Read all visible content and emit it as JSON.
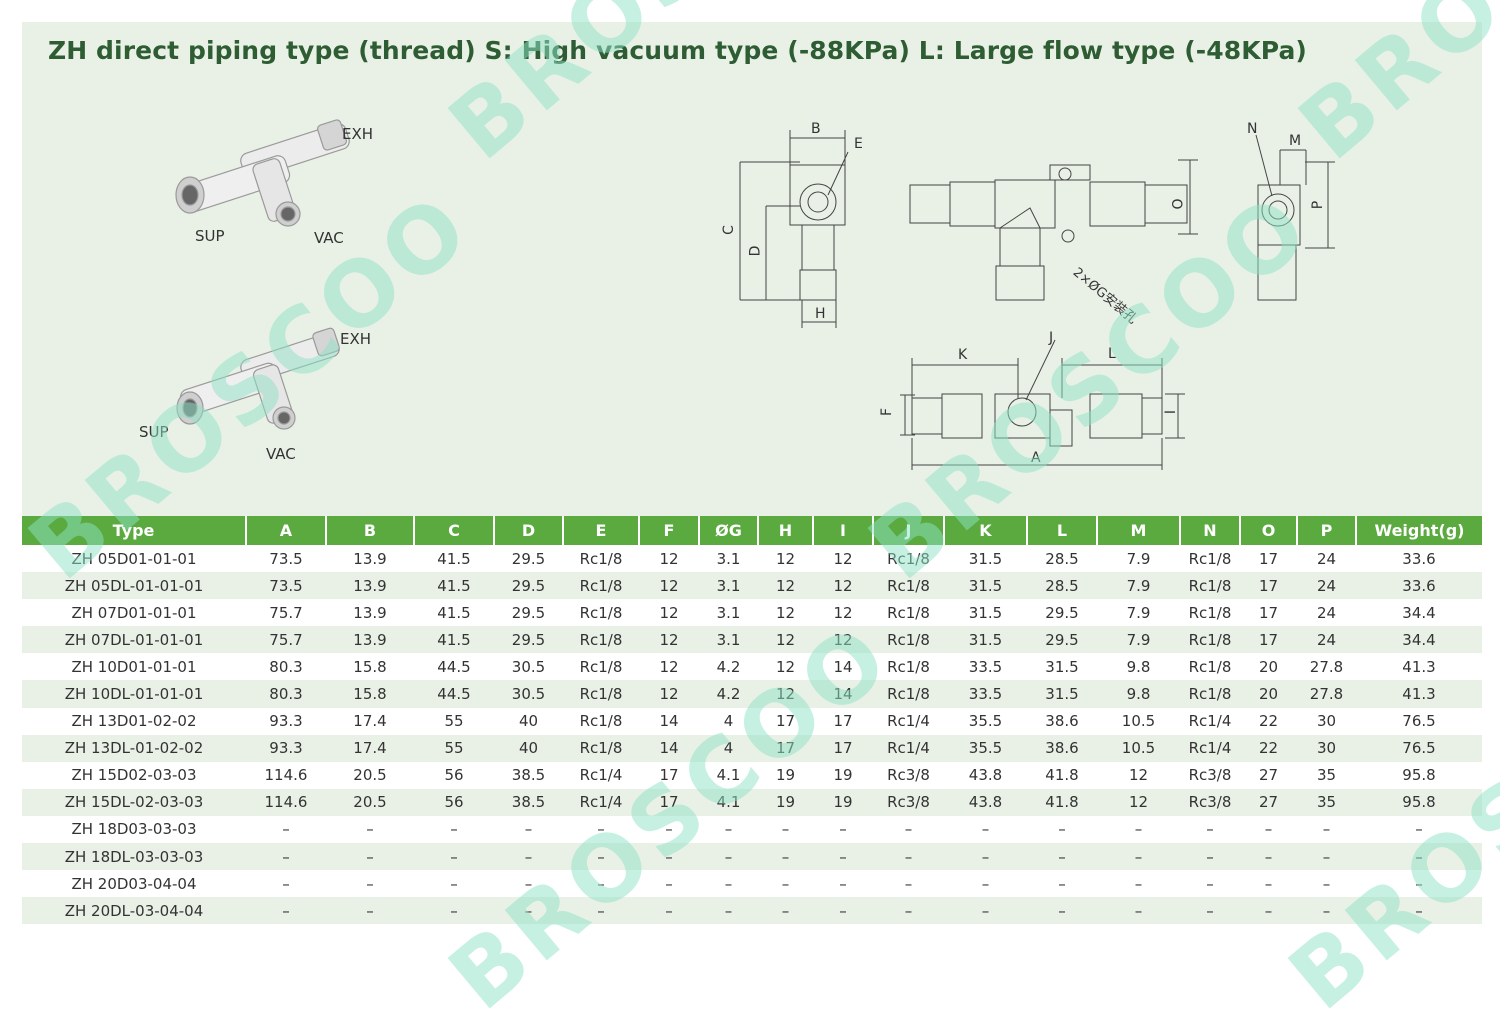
{
  "title": "ZH direct piping type (thread) S: High vacuum type (-88KPa) L: Large flow type (-48KPa)",
  "product_labels": {
    "top": {
      "exh": "EXH",
      "sup": "SUP",
      "vac": "VAC"
    },
    "bottom": {
      "exh": "EXH",
      "sup": "SUP",
      "vac": "VAC"
    }
  },
  "diagram_labels": {
    "b": "B",
    "e": "E",
    "c": "C",
    "d": "D",
    "h": "H",
    "o": "O",
    "mount": "2×ØG安装孔",
    "n": "N",
    "m": "M",
    "p": "P",
    "k": "K",
    "j": "J",
    "l": "L",
    "f": "F",
    "i": "I",
    "a": "A"
  },
  "watermark": "BROSCOO",
  "table": {
    "headers": [
      "Type",
      "A",
      "B",
      "C",
      "D",
      "E",
      "F",
      "ØG",
      "H",
      "I",
      "J",
      "K",
      "L",
      "M",
      "N",
      "O",
      "P",
      "Weight(g)"
    ],
    "rows": [
      [
        "ZH 05D01-01-01",
        "73.5",
        "13.9",
        "41.5",
        "29.5",
        "Rc1/8",
        "12",
        "3.1",
        "12",
        "12",
        "Rc1/8",
        "31.5",
        "28.5",
        "7.9",
        "Rc1/8",
        "17",
        "24",
        "33.6"
      ],
      [
        "ZH 05DL-01-01-01",
        "73.5",
        "13.9",
        "41.5",
        "29.5",
        "Rc1/8",
        "12",
        "3.1",
        "12",
        "12",
        "Rc1/8",
        "31.5",
        "28.5",
        "7.9",
        "Rc1/8",
        "17",
        "24",
        "33.6"
      ],
      [
        "ZH 07D01-01-01",
        "75.7",
        "13.9",
        "41.5",
        "29.5",
        "Rc1/8",
        "12",
        "3.1",
        "12",
        "12",
        "Rc1/8",
        "31.5",
        "29.5",
        "7.9",
        "Rc1/8",
        "17",
        "24",
        "34.4"
      ],
      [
        "ZH 07DL-01-01-01",
        "75.7",
        "13.9",
        "41.5",
        "29.5",
        "Rc1/8",
        "12",
        "3.1",
        "12",
        "12",
        "Rc1/8",
        "31.5",
        "29.5",
        "7.9",
        "Rc1/8",
        "17",
        "24",
        "34.4"
      ],
      [
        "ZH 10D01-01-01",
        "80.3",
        "15.8",
        "44.5",
        "30.5",
        "Rc1/8",
        "12",
        "4.2",
        "12",
        "14",
        "Rc1/8",
        "33.5",
        "31.5",
        "9.8",
        "Rc1/8",
        "20",
        "27.8",
        "41.3"
      ],
      [
        "ZH 10DL-01-01-01",
        "80.3",
        "15.8",
        "44.5",
        "30.5",
        "Rc1/8",
        "12",
        "4.2",
        "12",
        "14",
        "Rc1/8",
        "33.5",
        "31.5",
        "9.8",
        "Rc1/8",
        "20",
        "27.8",
        "41.3"
      ],
      [
        "ZH 13D01-02-02",
        "93.3",
        "17.4",
        "55",
        "40",
        "Rc1/8",
        "14",
        "4",
        "17",
        "17",
        "Rc1/4",
        "35.5",
        "38.6",
        "10.5",
        "Rc1/4",
        "22",
        "30",
        "76.5"
      ],
      [
        "ZH 13DL-01-02-02",
        "93.3",
        "17.4",
        "55",
        "40",
        "Rc1/8",
        "14",
        "4",
        "17",
        "17",
        "Rc1/4",
        "35.5",
        "38.6",
        "10.5",
        "Rc1/4",
        "22",
        "30",
        "76.5"
      ],
      [
        "ZH 15D02-03-03",
        "114.6",
        "20.5",
        "56",
        "38.5",
        "Rc1/4",
        "17",
        "4.1",
        "19",
        "19",
        "Rc3/8",
        "43.8",
        "41.8",
        "12",
        "Rc3/8",
        "27",
        "35",
        "95.8"
      ],
      [
        "ZH 15DL-02-03-03",
        "114.6",
        "20.5",
        "56",
        "38.5",
        "Rc1/4",
        "17",
        "4.1",
        "19",
        "19",
        "Rc3/8",
        "43.8",
        "41.8",
        "12",
        "Rc3/8",
        "27",
        "35",
        "95.8"
      ],
      [
        "ZH 18D03-03-03",
        "–",
        "–",
        "–",
        "–",
        "–",
        "–",
        "–",
        "–",
        "–",
        "–",
        "–",
        "–",
        "–",
        "–",
        "–",
        "–",
        "–"
      ],
      [
        "ZH 18DL-03-03-03",
        "–",
        "–",
        "–",
        "–",
        "–",
        "–",
        "–",
        "–",
        "–",
        "–",
        "–",
        "–",
        "–",
        "–",
        "–",
        "–",
        "–"
      ],
      [
        "ZH 20D03-04-04",
        "–",
        "–",
        "–",
        "–",
        "–",
        "–",
        "–",
        "–",
        "–",
        "–",
        "–",
        "–",
        "–",
        "–",
        "–",
        "–",
        "–"
      ],
      [
        "ZH 20DL-03-04-04",
        "–",
        "–",
        "–",
        "–",
        "–",
        "–",
        "–",
        "–",
        "–",
        "–",
        "–",
        "–",
        "–",
        "–",
        "–",
        "–",
        "–"
      ]
    ]
  }
}
